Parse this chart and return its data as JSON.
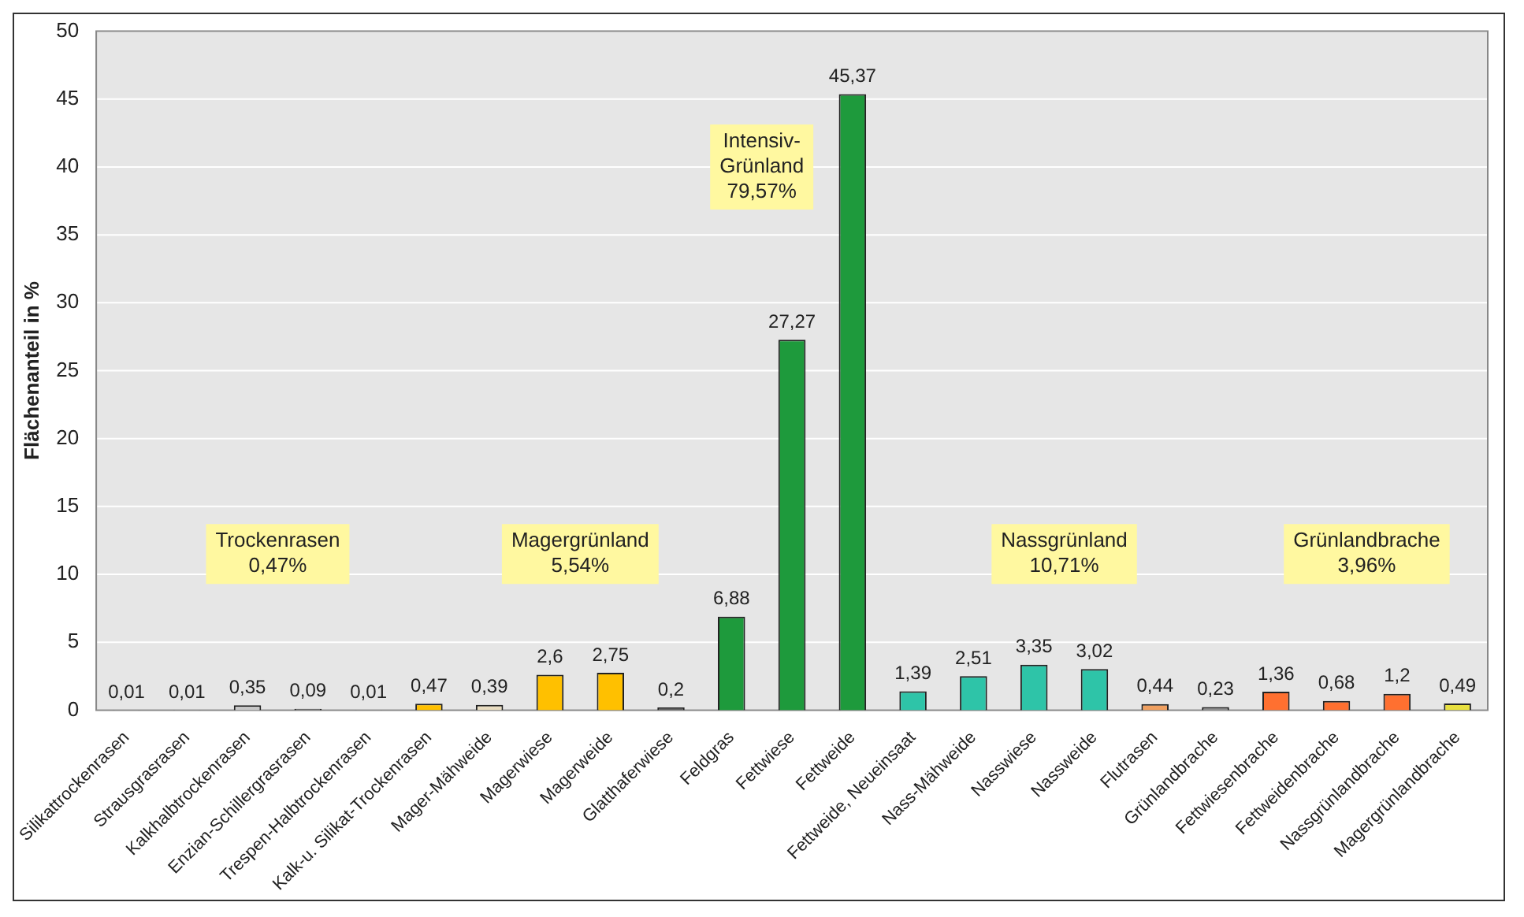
{
  "chart_data": {
    "type": "bar",
    "ylabel": "Flächenanteil in %",
    "categories": [
      "Silikattrockenrasen",
      "Strausgrasrasen",
      "Kalkhalbtrockenrasen",
      "Enzian-Schillergrasrasen",
      "Trespen-Halbtrockenrasen",
      "Kalk-u. Silikat-Trockenrasen",
      "Mager-Mähweide",
      "Magerwiese",
      "Magerweide",
      "Glatthaferwiese",
      "Feldgras",
      "Fettwiese",
      "Fettweide",
      "Fettweide, Neueinsaat",
      "Nass-Mähweide",
      "Nasswiese",
      "Nassweide",
      "Flutrasen",
      "Grünlandbrache",
      "Fettwiesenbrache",
      "Fettweidenbrache",
      "Nassgrünlandbrache",
      "Magergrünlandbrache"
    ],
    "values": [
      0.01,
      0.01,
      0.35,
      0.09,
      0.01,
      0.47,
      0.39,
      2.6,
      2.75,
      0.2,
      6.88,
      27.27,
      45.37,
      1.39,
      2.51,
      3.35,
      3.02,
      0.44,
      0.23,
      1.36,
      0.68,
      1.2,
      0.49
    ],
    "colors": [
      "#808080",
      "#808080",
      "#c8c8c8",
      "#707070",
      "#808080",
      "#ffc000",
      "#e8dcc0",
      "#ffc000",
      "#ffc000",
      "#606060",
      "#1e9a3c",
      "#1e9a3c",
      "#1e9a3c",
      "#2ec4a8",
      "#2ec4a8",
      "#2ec4a8",
      "#2ec4a8",
      "#f0a060",
      "#909090",
      "#ff7030",
      "#ff7030",
      "#ff7030",
      "#e8e040"
    ],
    "value_labels": [
      "0,01",
      "0,01",
      "0,35",
      "0,09",
      "0,01",
      "0,47",
      "0,39",
      "2,6",
      "2,75",
      "0,2",
      "6,88",
      "27,27",
      "45,37",
      "1,39",
      "2,51",
      "3,35",
      "3,02",
      "0,44",
      "0,23",
      "1,36",
      "0,68",
      "1,2",
      "0,49"
    ],
    "annotations": [
      "Trockenrasen\n0,47%",
      "Magergrünland\n5,54%",
      "Intensiv-\nGrünland\n79,57%",
      "Nassgrünland\n10,71%",
      "Grünlandbrache\n3,96%"
    ],
    "ylim": [
      0,
      50
    ],
    "yticks": [
      0,
      5,
      10,
      15,
      20,
      25,
      30,
      35,
      40,
      45,
      50
    ],
    "grid": "y",
    "legend": false
  }
}
